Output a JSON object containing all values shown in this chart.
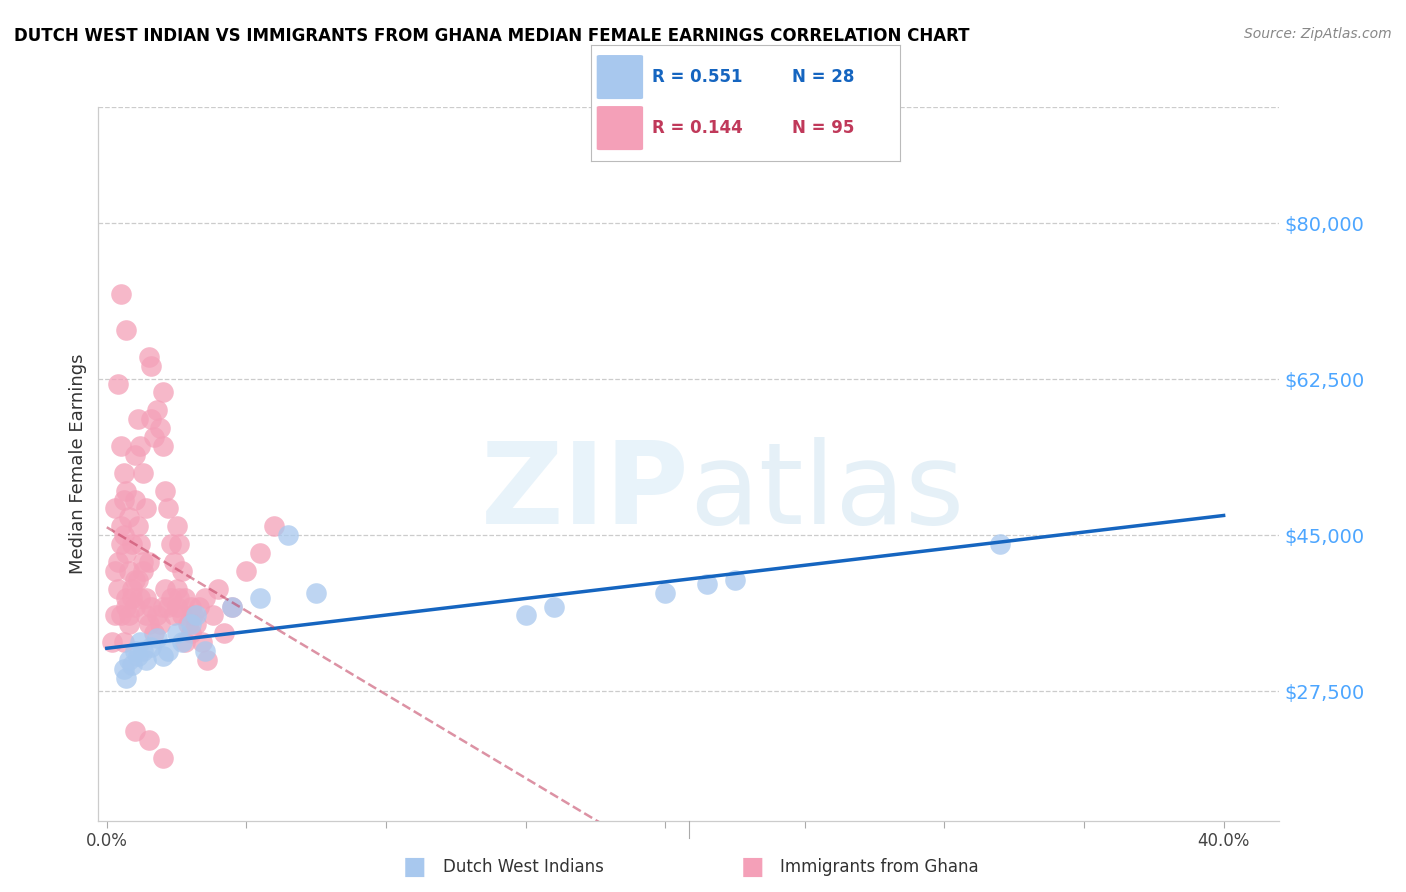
{
  "title": "DUTCH WEST INDIAN VS IMMIGRANTS FROM GHANA MEDIAN FEMALE EARNINGS CORRELATION CHART",
  "source": "Source: ZipAtlas.com",
  "ylabel": "Median Female Earnings",
  "xlim": [
    -0.003,
    0.42
  ],
  "ylim": [
    13000,
    93000
  ],
  "yticks": [
    27500,
    45000,
    62500,
    80000
  ],
  "ytick_labels": [
    "$27,500",
    "$45,000",
    "$62,500",
    "$80,000"
  ],
  "xticks": [
    0.0,
    0.05,
    0.1,
    0.15,
    0.2,
    0.25,
    0.3,
    0.35,
    0.4
  ],
  "xtick_labels_show": [
    "0.0%",
    "",
    "",
    "",
    "",
    "",
    "",
    "",
    "40.0%"
  ],
  "legend_blue_label": "Dutch West Indians",
  "legend_pink_label": "Immigrants from Ghana",
  "blue_scatter_color": "#a8c8ee",
  "pink_scatter_color": "#f4a0b8",
  "line_blue_color": "#1565c0",
  "line_pink_color": "#c0395a",
  "grid_color": "#cccccc",
  "ytick_color": "#4da6ff",
  "blue_x": [
    0.006,
    0.007,
    0.008,
    0.009,
    0.01,
    0.011,
    0.012,
    0.013,
    0.014,
    0.016,
    0.018,
    0.02,
    0.022,
    0.025,
    0.027,
    0.03,
    0.032,
    0.035,
    0.045,
    0.055,
    0.065,
    0.075,
    0.15,
    0.16,
    0.2,
    0.215,
    0.225,
    0.32
  ],
  "blue_y": [
    30000,
    29000,
    31000,
    30500,
    32000,
    31500,
    33000,
    32000,
    31000,
    32500,
    33500,
    31500,
    32000,
    34000,
    33000,
    35000,
    36000,
    32000,
    37000,
    38000,
    45000,
    38500,
    36000,
    37000,
    38500,
    39500,
    40000,
    44000
  ],
  "pink_x": [
    0.002,
    0.003,
    0.003,
    0.004,
    0.004,
    0.005,
    0.005,
    0.005,
    0.006,
    0.006,
    0.006,
    0.007,
    0.007,
    0.007,
    0.008,
    0.008,
    0.008,
    0.009,
    0.009,
    0.01,
    0.01,
    0.01,
    0.011,
    0.011,
    0.012,
    0.012,
    0.013,
    0.013,
    0.014,
    0.014,
    0.015,
    0.015,
    0.016,
    0.016,
    0.017,
    0.018,
    0.019,
    0.02,
    0.02,
    0.021,
    0.022,
    0.023,
    0.024,
    0.025,
    0.025,
    0.026,
    0.027,
    0.028,
    0.03,
    0.032,
    0.034,
    0.036,
    0.038,
    0.04,
    0.042,
    0.045,
    0.05,
    0.055,
    0.06,
    0.003,
    0.004,
    0.005,
    0.006,
    0.007,
    0.008,
    0.009,
    0.01,
    0.011,
    0.012,
    0.013,
    0.014,
    0.015,
    0.016,
    0.017,
    0.018,
    0.019,
    0.02,
    0.021,
    0.022,
    0.023,
    0.024,
    0.025,
    0.026,
    0.027,
    0.028,
    0.029,
    0.03,
    0.031,
    0.033,
    0.035,
    0.005,
    0.007,
    0.01,
    0.015,
    0.02
  ],
  "pink_y": [
    33000,
    36000,
    48000,
    42000,
    62000,
    46000,
    44000,
    55000,
    49000,
    52000,
    45000,
    38000,
    50000,
    43000,
    47000,
    41000,
    36000,
    44000,
    38000,
    54000,
    49000,
    40000,
    58000,
    46000,
    55000,
    44000,
    52000,
    42000,
    48000,
    38000,
    65000,
    42000,
    64000,
    58000,
    56000,
    59000,
    57000,
    61000,
    55000,
    50000,
    48000,
    44000,
    42000,
    46000,
    39000,
    44000,
    41000,
    38000,
    37000,
    35000,
    33000,
    31000,
    36000,
    39000,
    34000,
    37000,
    41000,
    43000,
    46000,
    41000,
    39000,
    36000,
    33000,
    37000,
    35000,
    39000,
    37000,
    40000,
    38000,
    41000,
    36000,
    35000,
    37000,
    34000,
    36000,
    35000,
    37000,
    39000,
    37000,
    38000,
    36000,
    37000,
    38000,
    36000,
    33000,
    35000,
    34000,
    36000,
    37000,
    38000,
    72000,
    68000,
    23000,
    22000,
    20000
  ]
}
